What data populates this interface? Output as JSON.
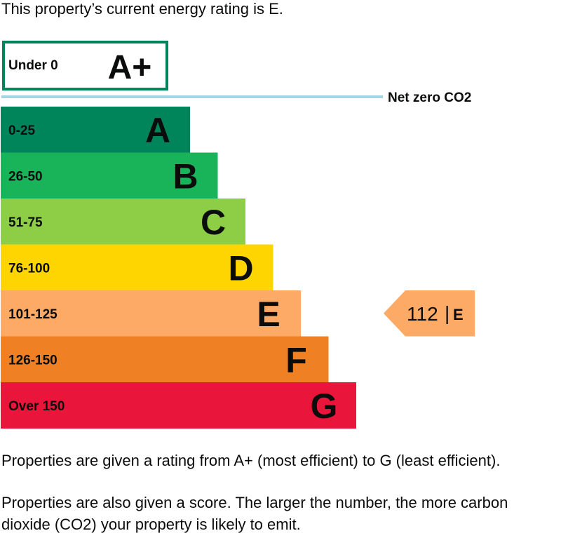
{
  "intro": "This property’s current energy rating is E.",
  "footer": {
    "p1": "Properties are given a rating from A+ (most efficient) to G (least efficient).",
    "p2": "Properties are also given a score. The larger the number, the more carbon dioxide (CO2) your property is likely to emit."
  },
  "chart_data": {
    "type": "bar",
    "bands": [
      {
        "band": "A+",
        "range": "Under 0",
        "color": "#ffffff",
        "border": "#00855a"
      },
      {
        "band": "A",
        "range": "0-25",
        "color": "#00855a"
      },
      {
        "band": "B",
        "range": "26-50",
        "color": "#19b459"
      },
      {
        "band": "C",
        "range": "51-75",
        "color": "#8dce46"
      },
      {
        "band": "D",
        "range": "76-100",
        "color": "#ffd500"
      },
      {
        "band": "E",
        "range": "101-125",
        "color": "#fcaa65"
      },
      {
        "band": "F",
        "range": "126-150",
        "color": "#ef8023"
      },
      {
        "band": "G",
        "range": "Over 150",
        "color": "#e9153b"
      }
    ],
    "net_zero_label": "Net zero CO2",
    "net_zero_color": "#a5d4e4",
    "current": {
      "score": "112",
      "band": "E",
      "color": "#fcaa65"
    }
  }
}
